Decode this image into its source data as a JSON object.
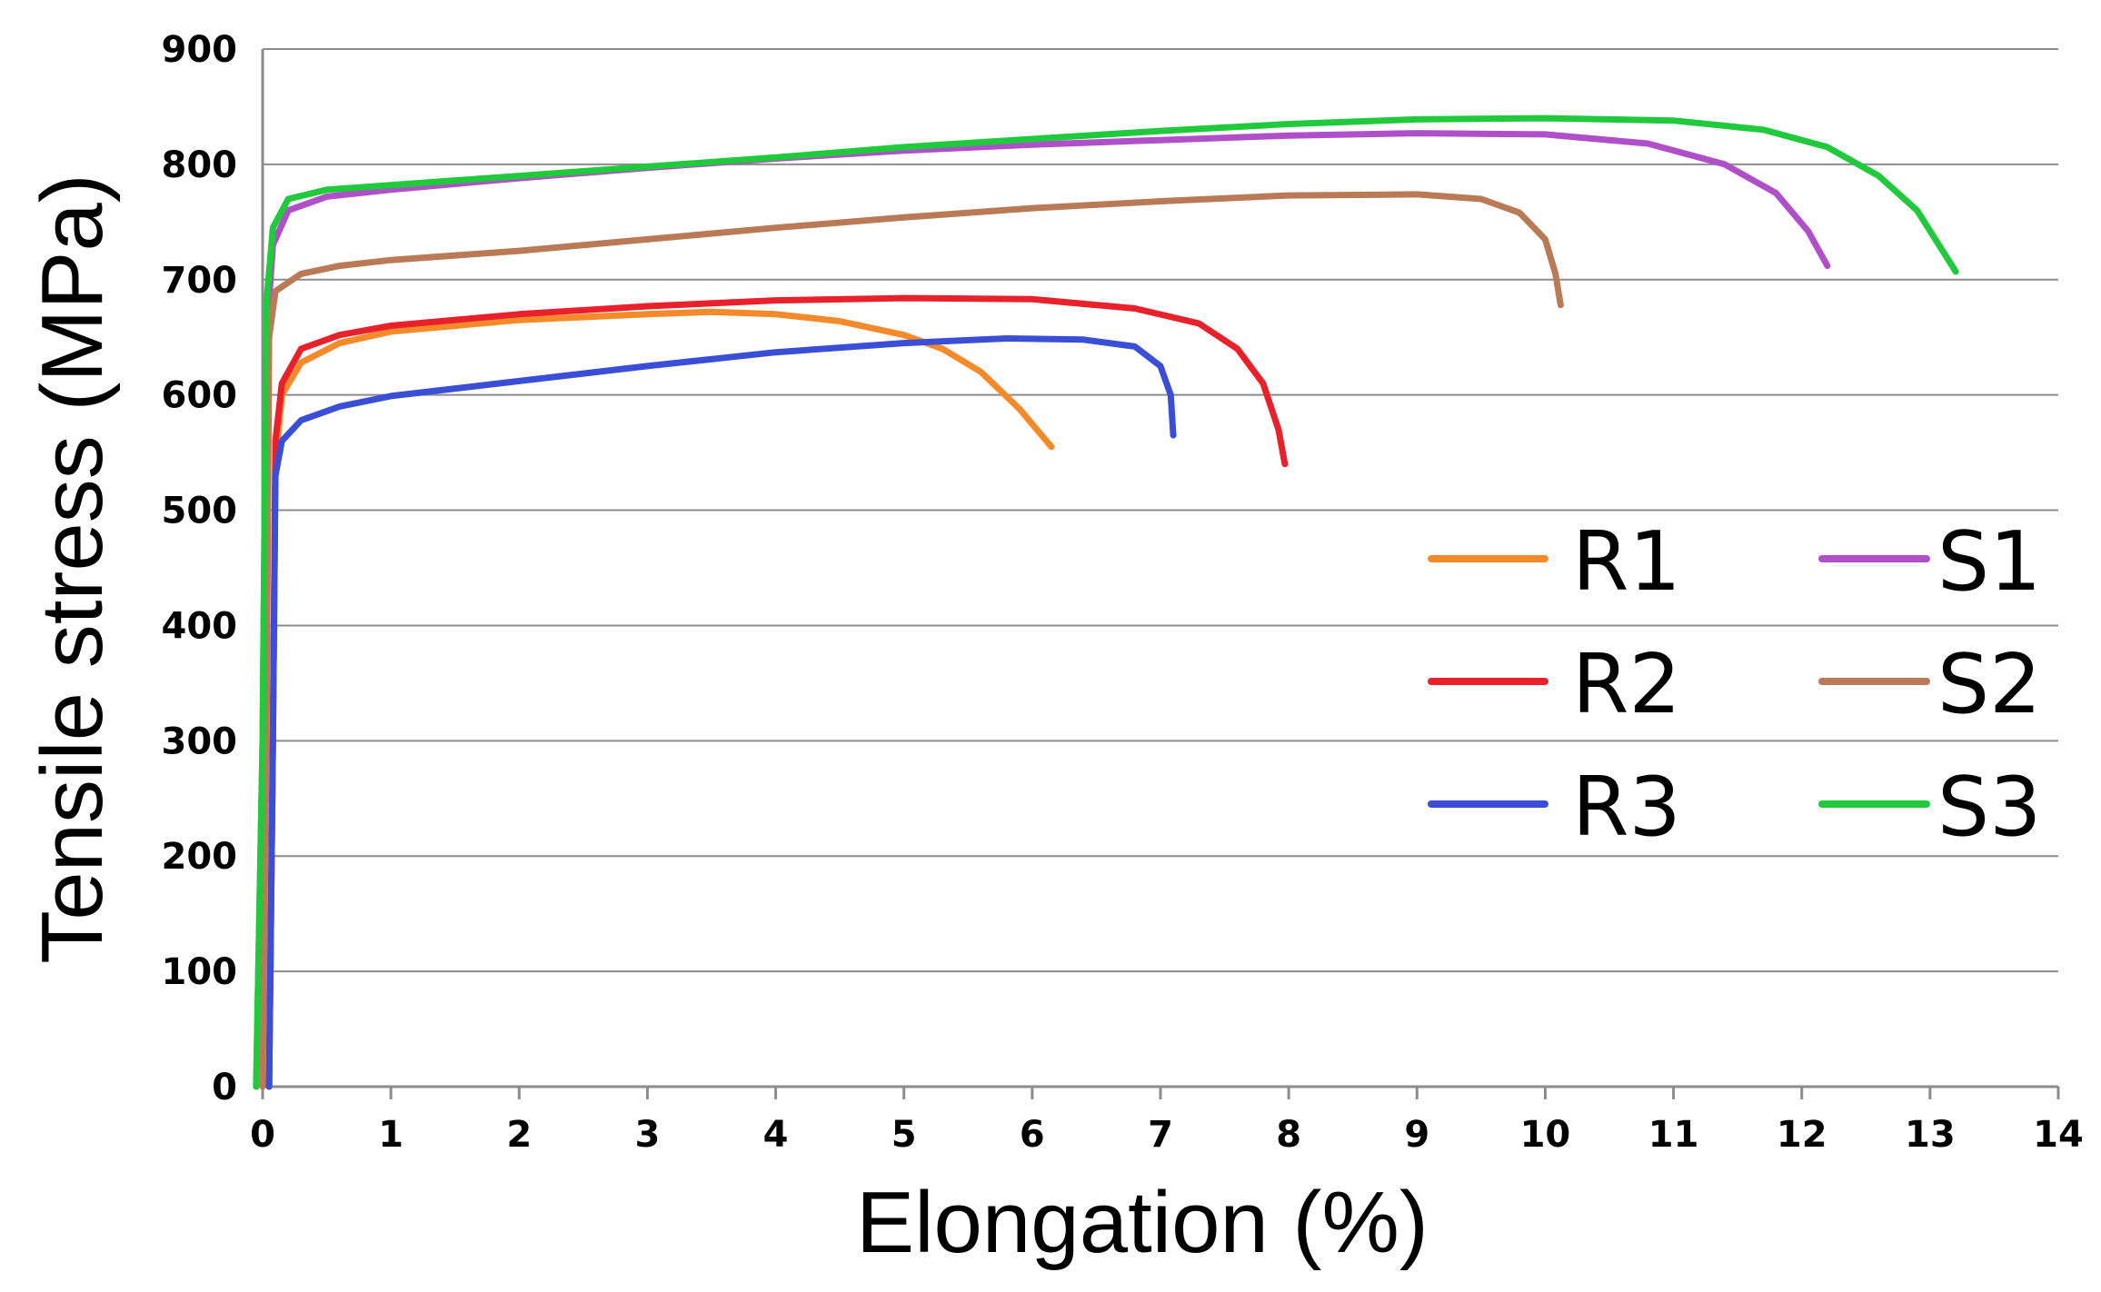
{
  "chart_data": {
    "type": "line",
    "title": "",
    "xlabel": "Elongation (%)",
    "ylabel": "Tensile stress (MPa)",
    "xlim": [
      0,
      14
    ],
    "ylim": [
      0,
      900
    ],
    "xticks": [
      "0",
      "1",
      "2",
      "3",
      "4",
      "5",
      "6",
      "7",
      "8",
      "9",
      "10",
      "11",
      "12",
      "13",
      "14"
    ],
    "yticks": [
      "0",
      "100",
      "200",
      "300",
      "400",
      "500",
      "600",
      "700",
      "800",
      "900"
    ],
    "grid": "horizontal",
    "legend_position": "center-right",
    "series": [
      {
        "name": "R1",
        "color": "#f58a2a",
        "points": [
          [
            0.05,
            0
          ],
          [
            0.08,
            300
          ],
          [
            0.1,
            540
          ],
          [
            0.15,
            600
          ],
          [
            0.3,
            628
          ],
          [
            0.6,
            645
          ],
          [
            1,
            655
          ],
          [
            2,
            665
          ],
          [
            3,
            670
          ],
          [
            3.5,
            672
          ],
          [
            4,
            670
          ],
          [
            4.5,
            664
          ],
          [
            5,
            652
          ],
          [
            5.3,
            640
          ],
          [
            5.6,
            620
          ],
          [
            5.9,
            588
          ],
          [
            6.15,
            555
          ]
        ]
      },
      {
        "name": "R2",
        "color": "#e8212a",
        "points": [
          [
            0.05,
            0
          ],
          [
            0.08,
            300
          ],
          [
            0.1,
            560
          ],
          [
            0.15,
            610
          ],
          [
            0.3,
            640
          ],
          [
            0.6,
            652
          ],
          [
            1,
            660
          ],
          [
            2,
            670
          ],
          [
            3,
            677
          ],
          [
            4,
            682
          ],
          [
            5,
            684
          ],
          [
            6,
            683
          ],
          [
            6.8,
            675
          ],
          [
            7.3,
            662
          ],
          [
            7.6,
            640
          ],
          [
            7.8,
            610
          ],
          [
            7.92,
            570
          ],
          [
            7.97,
            540
          ]
        ]
      },
      {
        "name": "R3",
        "color": "#3b4fd6",
        "points": [
          [
            0.05,
            0
          ],
          [
            0.08,
            300
          ],
          [
            0.1,
            530
          ],
          [
            0.15,
            560
          ],
          [
            0.3,
            578
          ],
          [
            0.6,
            590
          ],
          [
            1,
            599
          ],
          [
            2,
            612
          ],
          [
            3,
            625
          ],
          [
            4,
            637
          ],
          [
            5,
            645
          ],
          [
            5.8,
            649
          ],
          [
            6.4,
            648
          ],
          [
            6.8,
            642
          ],
          [
            7.0,
            625
          ],
          [
            7.08,
            600
          ],
          [
            7.1,
            565
          ]
        ]
      },
      {
        "name": "S1",
        "color": "#b050c8",
        "points": [
          [
            -0.05,
            0
          ],
          [
            0.0,
            300
          ],
          [
            0.03,
            650
          ],
          [
            0.08,
            730
          ],
          [
            0.2,
            760
          ],
          [
            0.5,
            772
          ],
          [
            1,
            778
          ],
          [
            2,
            788
          ],
          [
            3,
            797
          ],
          [
            4,
            805
          ],
          [
            5,
            812
          ],
          [
            6,
            817
          ],
          [
            7,
            821
          ],
          [
            8,
            825
          ],
          [
            9,
            827
          ],
          [
            10,
            826
          ],
          [
            10.8,
            818
          ],
          [
            11.4,
            800
          ],
          [
            11.8,
            775
          ],
          [
            12.05,
            742
          ],
          [
            12.2,
            712
          ]
        ]
      },
      {
        "name": "S2",
        "color": "#b97a55",
        "points": [
          [
            0.0,
            0
          ],
          [
            0.03,
            300
          ],
          [
            0.05,
            650
          ],
          [
            0.1,
            690
          ],
          [
            0.3,
            705
          ],
          [
            0.6,
            712
          ],
          [
            1,
            717
          ],
          [
            2,
            725
          ],
          [
            3,
            735
          ],
          [
            4,
            745
          ],
          [
            5,
            754
          ],
          [
            6,
            762
          ],
          [
            7,
            768
          ],
          [
            8,
            773
          ],
          [
            9,
            774
          ],
          [
            9.5,
            770
          ],
          [
            9.8,
            758
          ],
          [
            10.0,
            735
          ],
          [
            10.08,
            705
          ],
          [
            10.12,
            678
          ]
        ]
      },
      {
        "name": "S3",
        "color": "#21c93c",
        "points": [
          [
            -0.05,
            0
          ],
          [
            0.0,
            300
          ],
          [
            0.03,
            680
          ],
          [
            0.08,
            745
          ],
          [
            0.2,
            770
          ],
          [
            0.5,
            778
          ],
          [
            1,
            782
          ],
          [
            2,
            790
          ],
          [
            3,
            798
          ],
          [
            4,
            806
          ],
          [
            5,
            815
          ],
          [
            6,
            822
          ],
          [
            7,
            829
          ],
          [
            8,
            835
          ],
          [
            9,
            839
          ],
          [
            10,
            840
          ],
          [
            11,
            838
          ],
          [
            11.7,
            830
          ],
          [
            12.2,
            815
          ],
          [
            12.6,
            790
          ],
          [
            12.9,
            760
          ],
          [
            13.2,
            707
          ]
        ]
      }
    ]
  }
}
